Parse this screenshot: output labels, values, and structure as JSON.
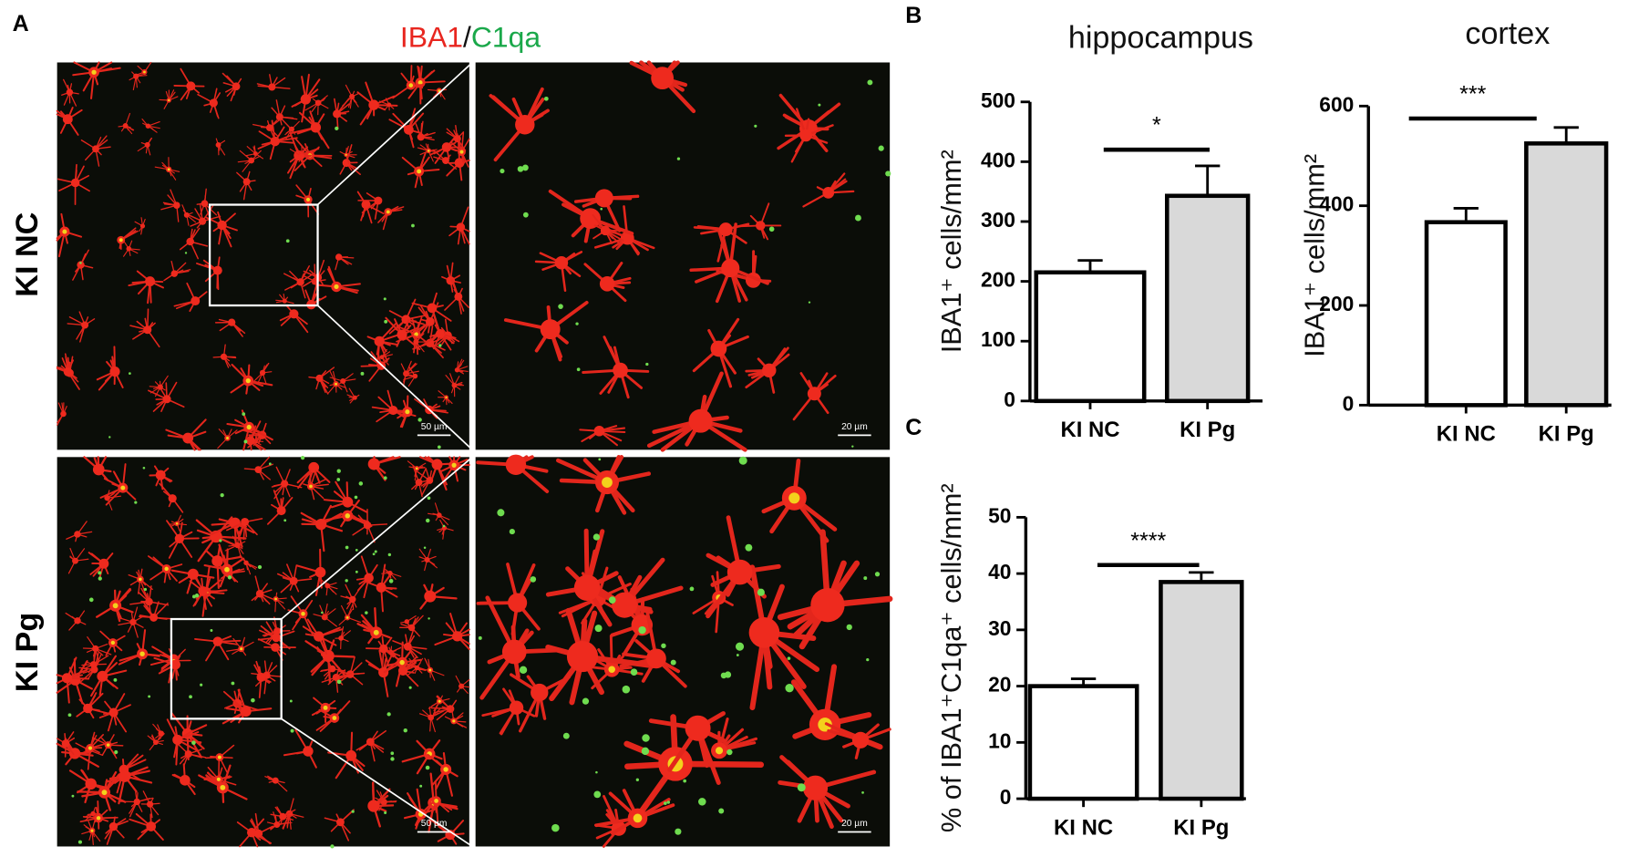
{
  "figure": {
    "panel_labels": [
      "A",
      "B",
      "C"
    ],
    "stain": [
      "IBA1",
      "/",
      "C1qa"
    ],
    "row_labels": [
      "KI NC",
      "KI Pg"
    ],
    "scale_bars": [
      "50 µm",
      "20 µm",
      "50 µm",
      "20 µm"
    ]
  },
  "chart_data": [
    {
      "type": "bar",
      "title": "hippocampus",
      "y_label": "IBA1⁺ cells/mm²",
      "categories": [
        "KI NC",
        "KI Pg"
      ],
      "values": [
        215,
        343
      ],
      "errors": [
        20,
        50
      ],
      "colors": [
        "#ffffff",
        "#d9d9d9"
      ],
      "ylim": [
        0,
        500
      ],
      "yticks": [
        0,
        100,
        200,
        300,
        400,
        500
      ],
      "significance": "*"
    },
    {
      "type": "bar",
      "title": "cortex",
      "y_label": "IBA1⁺ cells/mm²",
      "categories": [
        "KI NC",
        "KI Pg"
      ],
      "values": [
        367,
        525
      ],
      "errors": [
        28,
        32
      ],
      "colors": [
        "#ffffff",
        "#d9d9d9"
      ],
      "ylim": [
        0,
        600
      ],
      "yticks": [
        0,
        200,
        400,
        600
      ],
      "significance": "***"
    },
    {
      "type": "bar",
      "y_label": "% of IBA1⁺C1qa⁺ cells/mm²",
      "categories": [
        "KI NC",
        "KI Pg"
      ],
      "values": [
        20,
        38.5
      ],
      "errors": [
        1.3,
        1.7
      ],
      "colors": [
        "#ffffff",
        "#d9d9d9"
      ],
      "ylim": [
        0,
        50
      ],
      "yticks": [
        0,
        10,
        20,
        30,
        40,
        50
      ],
      "significance": "****"
    }
  ]
}
